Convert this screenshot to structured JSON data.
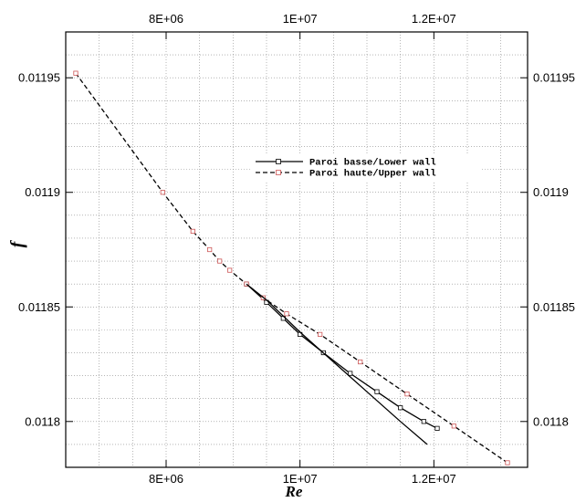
{
  "chart_data": {
    "type": "line",
    "xlabel": "Re",
    "ylabel": "f",
    "xlim": [
      6500000,
      13400000
    ],
    "ylim": [
      0.01178,
      0.01197
    ],
    "x_ticks": [
      {
        "value": 8000000,
        "label": "8E+06"
      },
      {
        "value": 10000000,
        "label": "1E+07"
      },
      {
        "value": 12000000,
        "label": "1.2E+07"
      }
    ],
    "y_ticks": [
      {
        "value": 0.0118,
        "label": "0.0118"
      },
      {
        "value": 0.01185,
        "label": "0.01185"
      },
      {
        "value": 0.0119,
        "label": "0.0119"
      },
      {
        "value": 0.01195,
        "label": "0.01195"
      }
    ],
    "x_minor_step": 500000,
    "y_minor_step": 1e-05,
    "grid": true,
    "legend_position": "top-right",
    "series": [
      {
        "name": "Paroi basse/Lower wall",
        "line_style": "solid",
        "color": "#000000",
        "x": [
          9200000,
          9500000,
          9750000,
          10000000,
          10350000,
          10750000,
          11150000,
          11500000,
          11850000,
          12050000
        ],
        "y": [
          0.01186,
          0.011852,
          0.011845,
          0.011838,
          0.01183,
          0.011821,
          0.011813,
          0.011806,
          0.0118,
          0.011797
        ]
      },
      {
        "name": "Paroi haute/Upper wall",
        "line_style": "dashed",
        "color": "#000000",
        "marker_color": "#cc5555",
        "x": [
          6650000,
          7950000,
          8400000,
          8650000,
          8800000,
          8950000,
          9200000,
          9450000,
          9800000,
          10300000,
          10900000,
          11600000,
          12300000,
          13100000
        ],
        "y": [
          0.011952,
          0.0119,
          0.011883,
          0.011875,
          0.01187,
          0.011866,
          0.01186,
          0.011854,
          0.011847,
          0.011838,
          0.011826,
          0.011812,
          0.011798,
          0.011782
        ]
      },
      {
        "name": "",
        "line_style": "solid",
        "color": "#000000",
        "x": [
          9200000,
          9500000,
          10000000,
          10500000,
          11000000,
          11500000,
          11900000
        ],
        "y": [
          0.01186,
          0.011853,
          0.011839,
          0.011826,
          0.011813,
          0.0118,
          0.01179
        ]
      }
    ]
  }
}
